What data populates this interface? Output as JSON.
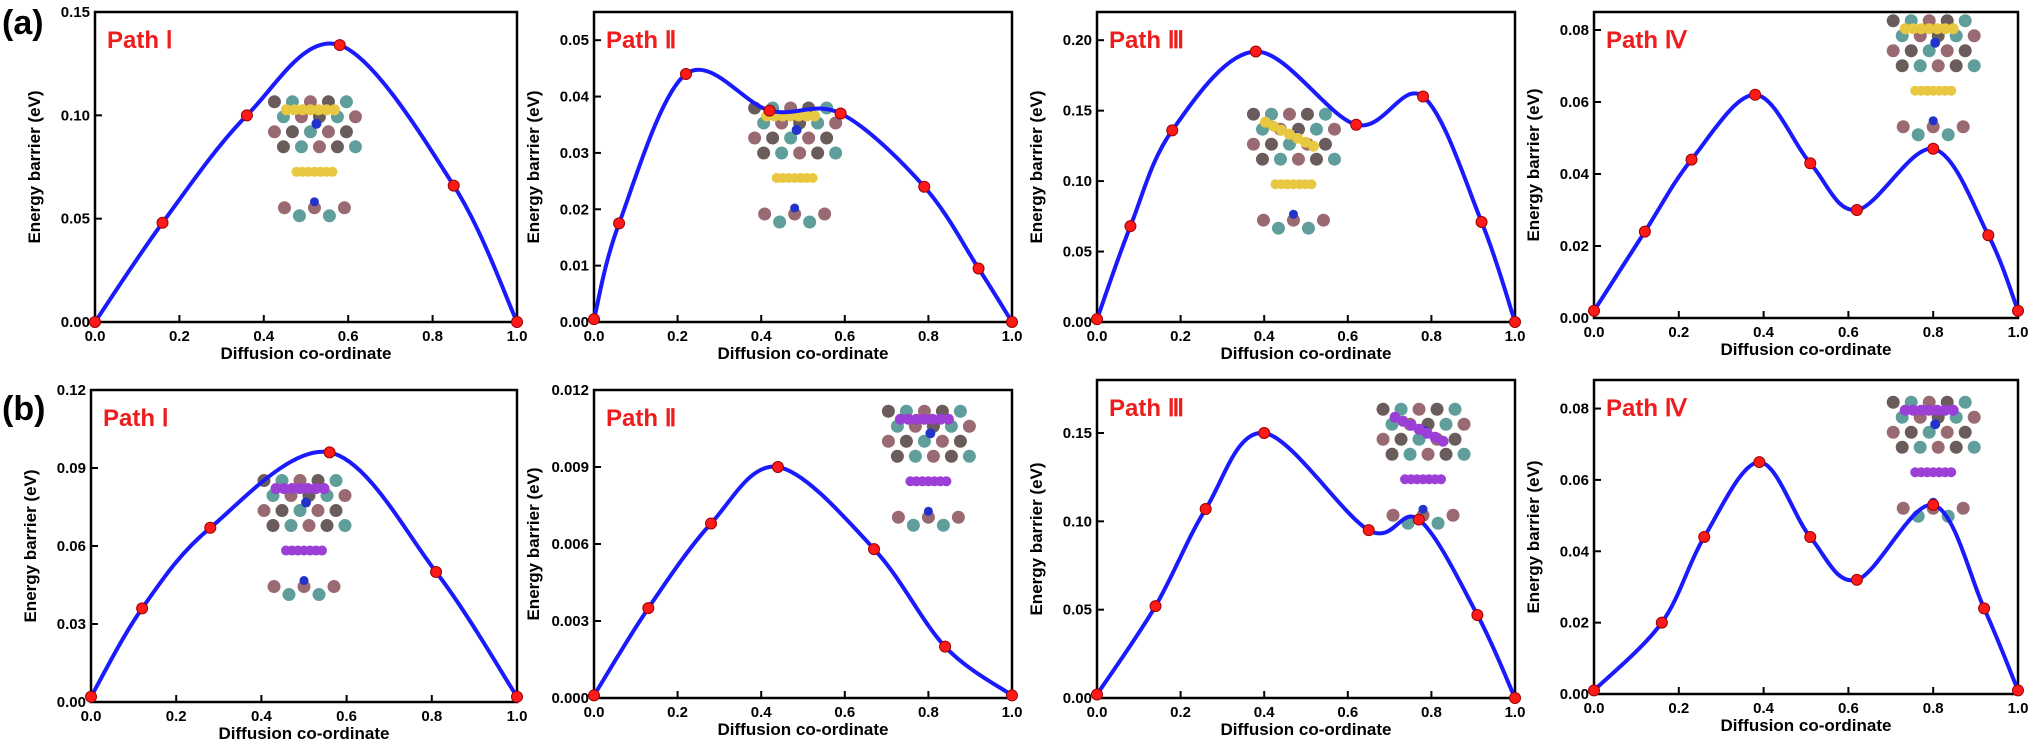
{
  "row_labels": [
    "(a)",
    "(b)"
  ],
  "colors": {
    "curve": "#1a1aff",
    "points": "#ff1a1a",
    "title": "#ee1c1c"
  },
  "chart_data": [
    {
      "type": "line",
      "row": 0,
      "title": "Path Ⅰ",
      "xlabel": "Diffusion co-ordinate",
      "ylabel": "Energy barrier (eV)",
      "xlim": [
        0,
        1.0
      ],
      "ylim": [
        0,
        0.15
      ],
      "xticks": [
        "0.0",
        "0.2",
        "0.4",
        "0.6",
        "0.8",
        "1.0"
      ],
      "yticks": [
        "0.00",
        "0.05",
        "0.10",
        "0.15"
      ],
      "x": [
        0.0,
        0.16,
        0.36,
        0.58,
        0.85,
        1.0
      ],
      "y": [
        0.0,
        0.048,
        0.1,
        0.134,
        0.066,
        0.0
      ],
      "inset": "Li/S cluster diffusion path on substrate (yellow)"
    },
    {
      "type": "line",
      "row": 0,
      "title": "Path Ⅱ",
      "xlabel": "Diffusion co-ordinate",
      "ylabel": "Energy barrier (eV)",
      "xlim": [
        0,
        1.0
      ],
      "ylim": [
        0,
        0.055
      ],
      "xticks": [
        "0.0",
        "0.2",
        "0.4",
        "0.6",
        "0.8",
        "1.0"
      ],
      "yticks": [
        "0.00",
        "0.01",
        "0.02",
        "0.03",
        "0.04",
        "0.05"
      ],
      "x": [
        0.0,
        0.06,
        0.22,
        0.42,
        0.59,
        0.79,
        0.92,
        1.0
      ],
      "y": [
        0.0005,
        0.0175,
        0.044,
        0.0375,
        0.037,
        0.024,
        0.0095,
        0.0
      ],
      "inset": "diffusion path (yellow)"
    },
    {
      "type": "line",
      "row": 0,
      "title": "Path Ⅲ",
      "xlabel": "Diffusion co-ordinate",
      "ylabel": "Energy barrier (eV)",
      "xlim": [
        0,
        1.0
      ],
      "ylim": [
        0,
        0.22
      ],
      "xticks": [
        "0.0",
        "0.2",
        "0.4",
        "0.6",
        "0.8",
        "1.0"
      ],
      "yticks": [
        "0.00",
        "0.05",
        "0.10",
        "0.15",
        "0.20"
      ],
      "x": [
        0.0,
        0.08,
        0.18,
        0.38,
        0.62,
        0.78,
        0.92,
        1.0
      ],
      "y": [
        0.002,
        0.068,
        0.136,
        0.192,
        0.14,
        0.16,
        0.071,
        0.0
      ],
      "inset": "diffusion path (yellow)"
    },
    {
      "type": "line",
      "row": 0,
      "title": "Path Ⅳ",
      "xlabel": "Diffusion co-ordinate",
      "ylabel": "Energy barrier (eV)",
      "xlim": [
        0,
        1.0
      ],
      "ylim": [
        0,
        0.085
      ],
      "xticks": [
        "0.0",
        "0.2",
        "0.4",
        "0.6",
        "0.8",
        "1.0"
      ],
      "yticks": [
        "0.00",
        "0.02",
        "0.04",
        "0.06",
        "0.08"
      ],
      "x": [
        0.0,
        0.12,
        0.23,
        0.38,
        0.51,
        0.62,
        0.8,
        0.93,
        1.0
      ],
      "y": [
        0.002,
        0.024,
        0.044,
        0.062,
        0.043,
        0.03,
        0.047,
        0.023,
        0.002
      ],
      "inset": "diffusion path (yellow)"
    },
    {
      "type": "line",
      "row": 1,
      "title": "Path Ⅰ",
      "xlabel": "Diffusion co-ordinate",
      "ylabel": "Energy barrier (eV)",
      "xlim": [
        0,
        1.0
      ],
      "ylim": [
        0,
        0.12
      ],
      "xticks": [
        "0.0",
        "0.2",
        "0.4",
        "0.6",
        "0.8",
        "1.0"
      ],
      "yticks": [
        "0.00",
        "0.03",
        "0.06",
        "0.09",
        "0.12"
      ],
      "x": [
        0.0,
        0.12,
        0.28,
        0.56,
        0.81,
        1.0
      ],
      "y": [
        0.002,
        0.036,
        0.067,
        0.096,
        0.05,
        0.002
      ],
      "inset": "diffusion path (purple)"
    },
    {
      "type": "line",
      "row": 1,
      "title": "Path Ⅱ",
      "xlabel": "Diffusion co-ordinate",
      "ylabel": "Energy barrier (eV)",
      "xlim": [
        0,
        1.0
      ],
      "ylim": [
        0,
        0.012
      ],
      "xticks": [
        "0.0",
        "0.2",
        "0.4",
        "0.6",
        "0.8",
        "1.0"
      ],
      "yticks": [
        "0.000",
        "0.003",
        "0.006",
        "0.009",
        "0.012"
      ],
      "x": [
        0.0,
        0.13,
        0.28,
        0.44,
        0.67,
        0.84,
        1.0
      ],
      "y": [
        0.0001,
        0.0035,
        0.0068,
        0.009,
        0.0058,
        0.002,
        0.0001
      ],
      "inset": "diffusion path (purple)"
    },
    {
      "type": "line",
      "row": 1,
      "title": "Path Ⅲ",
      "xlabel": "Diffusion co-ordinate",
      "ylabel": "Energy barrier (eV)",
      "xlim": [
        0,
        1.0
      ],
      "ylim": [
        0,
        0.18
      ],
      "xticks": [
        "0.0",
        "0.2",
        "0.4",
        "0.6",
        "0.8",
        "1.0"
      ],
      "yticks": [
        "0.00",
        "0.05",
        "0.10",
        "0.15"
      ],
      "x": [
        0.0,
        0.14,
        0.26,
        0.4,
        0.65,
        0.77,
        0.91,
        1.0
      ],
      "y": [
        0.002,
        0.052,
        0.107,
        0.15,
        0.095,
        0.101,
        0.047,
        0.0
      ],
      "inset": "diffusion path (purple)"
    },
    {
      "type": "line",
      "row": 1,
      "title": "Path Ⅳ",
      "xlabel": "Diffusion co-ordinate",
      "ylabel": "Energy barrier (eV)",
      "xlim": [
        0,
        1.0
      ],
      "ylim": [
        0,
        0.088
      ],
      "xticks": [
        "0.0",
        "0.2",
        "0.4",
        "0.6",
        "0.8",
        "1.0"
      ],
      "yticks": [
        "0.00",
        "0.02",
        "0.04",
        "0.06",
        "0.08"
      ],
      "x": [
        0.0,
        0.16,
        0.26,
        0.39,
        0.51,
        0.62,
        0.8,
        0.92,
        1.0
      ],
      "y": [
        0.001,
        0.02,
        0.044,
        0.065,
        0.044,
        0.032,
        0.053,
        0.024,
        0.001
      ],
      "inset": "diffusion path (purple)"
    }
  ]
}
